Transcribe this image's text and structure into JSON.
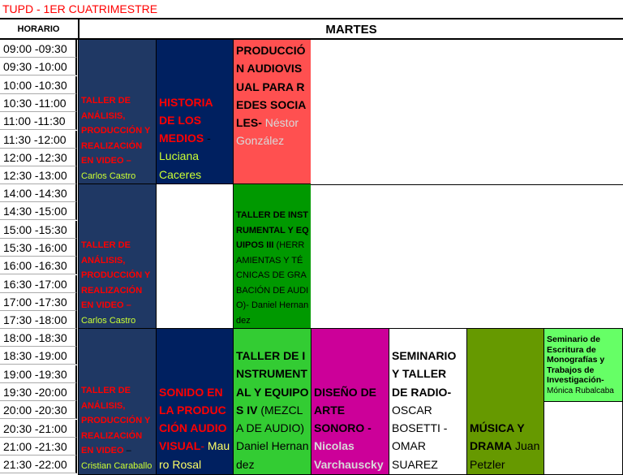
{
  "title": "TUPD - 1ER CUATRIMESTRE",
  "header": {
    "horario": "HORARIO",
    "day": "MARTES"
  },
  "times": [
    "09:00 -09:30",
    "09:30 -10:00",
    "10:00 -10:30",
    "10:30 -11:00",
    "11:00 -11:30",
    "11:30 -12:00",
    "12:00 -12:30",
    "12:30 -13:00",
    "14:00 -14:30",
    "14:30 -15:00",
    "15:00 -15:30",
    "15:30 -16:00",
    "16:00 -16:30",
    "16:30 -17:00",
    "17:00 -17:30",
    "17:30 -18:00",
    "18:00 -18:30",
    "18:30 -19:00",
    "19:00 -19:30",
    "19:30 -20:00",
    "20:00 -20:30",
    "20:30 -21:00",
    "21:00 -21:30",
    "21:30 -22:00"
  ],
  "colors": {
    "navy1": "#1f3864",
    "navy2": "#002060",
    "salmon": "#ff5050",
    "green": "#009900",
    "lightgreen": "#33cc33",
    "magenta": "#cc0099",
    "olive": "#669900",
    "brightgreen": "#66ff66"
  },
  "cells": {
    "taller1": {
      "t": "TALLER DE ANÁLISIS, PRODUCCIÓN Y REALIZACIÓN EN VIDEO –",
      "p": "Carlos Castro"
    },
    "historia": {
      "t": "HISTORIA DE LOS MEDIOS",
      "d": " - ",
      "p": "Luciana Caceres"
    },
    "produccion": {
      "t": "PRODUCCIÓN AUDIOVISUAL PARA REDES SOCIALES-",
      "p": "Néstor González"
    },
    "taller2": {
      "t": "TALLER DE ANÁLISIS, PRODUCCIÓN Y REALIZACIÓN EN VIDEO –",
      "p": "Carlos Castro"
    },
    "instr3": {
      "t": "TALLER DE INSTRUMENTAL Y EQUIPOS III",
      "p": "(HERRAMIENTAS Y TÉCNICAS DE GRABACIÓN DE AUDIO)- Daniel Hernandez"
    },
    "taller3": {
      "t": "TALLER DE ANÁLISIS, PRODUCCIÓN Y REALIZACIÓN EN VIDEO",
      "d": " –",
      "p": "Cristian Caraballo"
    },
    "sonido": {
      "t": "SONIDO EN LA PRODUCCIÓN AUDIOVISUAL",
      "d": "- ",
      "p": "Mauro Rosal"
    },
    "instr4": {
      "t": "TALLER DE INSTRUMENTAL Y EQUIPOS IV",
      "p": "(MEZCLA DE AUDIO) Daniel Hernandez"
    },
    "diseno": {
      "t": "DISEÑO DE ARTE SONORO -",
      "p": "Nicolas Varchauscky"
    },
    "radio": {
      "t": "SEMINARIO Y TALLER DE RADIO-",
      "p": "OSCAR BOSETTI - OMAR SUAREZ"
    },
    "musica": {
      "t": "MÚSICA Y DRAMA",
      "p": " Juan Petzler"
    },
    "seminario": {
      "t": "Seminario de Escritura de Monografías y Trabajos de Investigación-",
      "p": "Mónica Rubalcaba"
    }
  }
}
